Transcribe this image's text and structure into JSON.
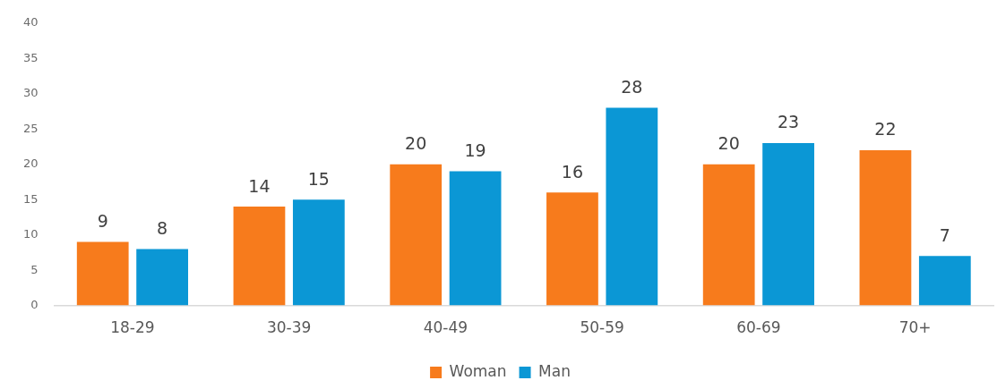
{
  "chart_data": {
    "type": "bar",
    "categories": [
      "18-29",
      "30-39",
      "40-49",
      "50-59",
      "60-69",
      "70+"
    ],
    "series": [
      {
        "name": "Woman",
        "color": "#f77b1c",
        "values": [
          9,
          14,
          20,
          16,
          20,
          22
        ]
      },
      {
        "name": "Man",
        "color": "#0b97d5",
        "values": [
          8,
          15,
          19,
          28,
          23,
          7
        ]
      }
    ],
    "ylim": [
      0,
      40
    ],
    "yticks": [
      0,
      5,
      10,
      15,
      20,
      25,
      30,
      35,
      40
    ],
    "grid": false,
    "legend": "bottom",
    "data_labels": true
  }
}
